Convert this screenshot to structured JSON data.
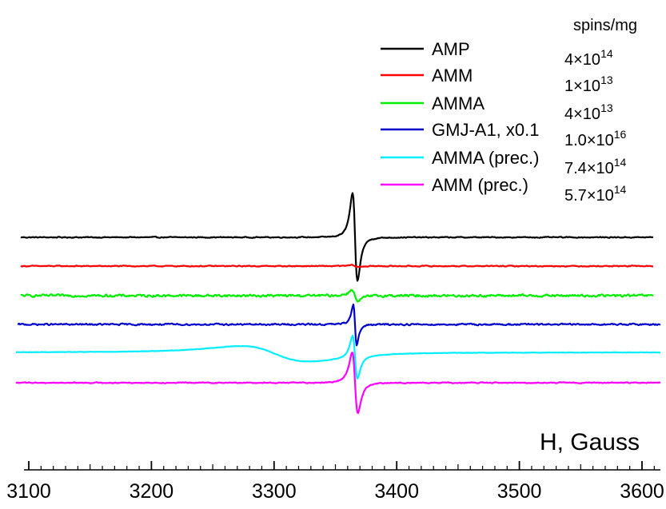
{
  "chart_data": {
    "type": "line",
    "title": "",
    "xlabel": "H, Gauss",
    "ylabel": "",
    "xlim": [
      3085,
      3620
    ],
    "xticks": [
      3100,
      3200,
      3300,
      3400,
      3500,
      3600
    ],
    "xtick_labels": [
      "3100",
      "3200",
      "3300",
      "3400",
      "3500",
      "3600"
    ],
    "legend_position": "top-right",
    "spins_header": "spins/mg",
    "series": [
      {
        "name": "AMP",
        "color": "#000000",
        "spins_mantissa": "4",
        "spins_exponent": "14",
        "baseline": 0,
        "line_amp": 65,
        "line_center": 3366,
        "line_width": 3.5,
        "noise": 1.0,
        "broad_amp": 0
      },
      {
        "name": "AMM",
        "color": "#ff0000",
        "spins_mantissa": "1",
        "spins_exponent": "13",
        "baseline": 0,
        "line_amp": 1.5,
        "line_center": 3366,
        "line_width": 4,
        "noise": 1.0,
        "broad_amp": 0
      },
      {
        "name": "AMMA",
        "color": "#00ee00",
        "spins_mantissa": "4",
        "spins_exponent": "13",
        "baseline": 0,
        "line_amp": 9,
        "line_center": 3366,
        "line_width": 4,
        "noise": 2.4,
        "broad_amp": 0
      },
      {
        "name": "GMJ-A1, x0.1",
        "color": "#0000cc",
        "spins_mantissa": "1.0",
        "spins_exponent": "16",
        "baseline": 0,
        "line_amp": 30,
        "line_center": 3366,
        "line_width": 2.5,
        "noise": 1.6,
        "broad_amp": 0
      },
      {
        "name": "AMMA (prec.)",
        "color": "#00eeff",
        "spins_mantissa": "7.4",
        "spins_exponent": "14",
        "baseline": 0,
        "line_amp": 32,
        "line_center": 3366,
        "line_width": 3.5,
        "noise": 0.4,
        "broad_amp": 14
      },
      {
        "name": "AMM (prec.)",
        "color": "#ff00ff",
        "spins_mantissa": "5.7",
        "spins_exponent": "14",
        "baseline": 0,
        "line_amp": 45,
        "line_center": 3366,
        "line_width": 4,
        "noise": 1.0,
        "broad_amp": 0
      }
    ]
  }
}
